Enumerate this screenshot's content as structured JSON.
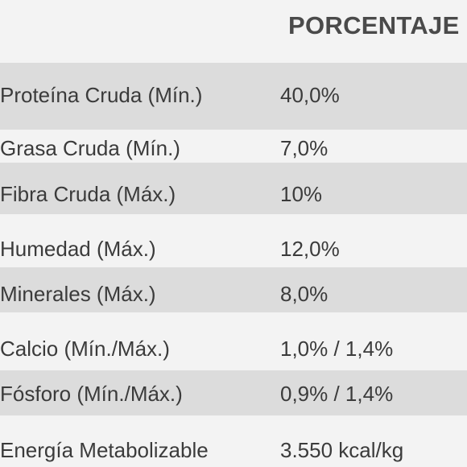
{
  "table": {
    "header": "PORCENTAJE",
    "rows": [
      {
        "name": "Proteína Cruda (Mín.)",
        "value": "40,0%"
      },
      {
        "name": "Grasa Cruda (Mín.)",
        "value": "7,0%"
      },
      {
        "name": "Fibra Cruda (Máx.)",
        "value": "10%"
      },
      {
        "name": "Humedad (Máx.)",
        "value": "12,0%"
      },
      {
        "name": "Minerales (Máx.)",
        "value": "8,0%"
      },
      {
        "name": "Calcio (Mín./Máx.)",
        "value": "1,0% / 1,4%"
      },
      {
        "name": "Fósforo (Mín./Máx.)",
        "value": "0,9% / 1,4%"
      },
      {
        "name": "Energía Metabolizable",
        "value": "3.550 kcal/kg"
      }
    ]
  }
}
